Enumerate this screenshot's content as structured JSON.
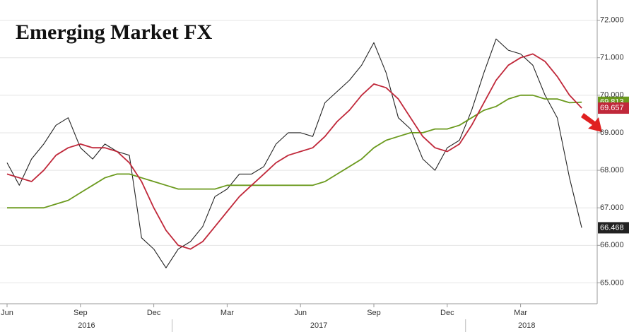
{
  "chart_data": {
    "type": "line",
    "title": "Emerging Market FX",
    "categories": [
      "Jun",
      null,
      null,
      null,
      null,
      null,
      "Sep",
      null,
      null,
      null,
      null,
      null,
      "Dec",
      null,
      null,
      null,
      null,
      null,
      "Mar",
      null,
      null,
      null,
      null,
      null,
      "Jun",
      null,
      null,
      null,
      null,
      null,
      "Sep",
      null,
      null,
      null,
      null,
      null,
      "Dec",
      null,
      null,
      null,
      null,
      null,
      "Mar",
      null,
      null,
      null,
      null,
      null
    ],
    "year_groups": [
      {
        "label": "2016",
        "from": 0,
        "to": 13
      },
      {
        "label": "2017",
        "from": 14,
        "to": 37
      },
      {
        "label": "2018",
        "from": 38,
        "to": 47
      }
    ],
    "series": [
      {
        "color": "#222222",
        "values": [
          68.2,
          67.6,
          68.3,
          68.7,
          69.2,
          69.4,
          68.6,
          68.3,
          68.7,
          68.5,
          68.4,
          66.2,
          65.9,
          65.4,
          65.9,
          66.1,
          66.5,
          67.3,
          67.5,
          67.9,
          67.9,
          68.1,
          68.7,
          69.0,
          69.0,
          68.9,
          69.8,
          70.1,
          70.4,
          70.8,
          71.4,
          70.6,
          69.4,
          69.1,
          68.3,
          68.0,
          68.6,
          68.8,
          69.6,
          70.6,
          71.5,
          71.2,
          71.1,
          70.8,
          70.0,
          69.4,
          67.8,
          66.468
        ]
      },
      {
        "color": "#6b9a1e",
        "values": [
          67.0,
          67.0,
          67.0,
          67.0,
          67.1,
          67.2,
          67.4,
          67.6,
          67.8,
          67.9,
          67.9,
          67.8,
          67.7,
          67.6,
          67.5,
          67.5,
          67.5,
          67.5,
          67.6,
          67.6,
          67.6,
          67.6,
          67.6,
          67.6,
          67.6,
          67.6,
          67.7,
          67.9,
          68.1,
          68.3,
          68.6,
          68.8,
          68.9,
          69.0,
          69.0,
          69.1,
          69.1,
          69.2,
          69.4,
          69.6,
          69.7,
          69.9,
          70.0,
          70.0,
          69.9,
          69.9,
          69.8,
          69.813
        ]
      },
      {
        "color": "#c0283a",
        "values": [
          67.9,
          67.8,
          67.7,
          68.0,
          68.4,
          68.6,
          68.7,
          68.6,
          68.6,
          68.5,
          68.2,
          67.7,
          67.0,
          66.4,
          66.0,
          65.9,
          66.1,
          66.5,
          66.9,
          67.3,
          67.6,
          67.9,
          68.2,
          68.4,
          68.5,
          68.6,
          68.9,
          69.3,
          69.6,
          70.0,
          70.3,
          70.2,
          69.9,
          69.4,
          68.9,
          68.6,
          68.5,
          68.7,
          69.2,
          69.8,
          70.4,
          70.8,
          71.0,
          71.1,
          70.9,
          70.5,
          70.0,
          69.657
        ]
      }
    ],
    "ylim": [
      64.5,
      72.5
    ],
    "yticks": [
      {
        "value": 65,
        "label": "65.000"
      },
      {
        "value": 66,
        "label": "66.000"
      },
      {
        "value": 67,
        "label": "67.000"
      },
      {
        "value": 68,
        "label": "68.000"
      },
      {
        "value": 69,
        "label": "69.000"
      },
      {
        "value": 70,
        "label": "70.000"
      },
      {
        "value": 71,
        "label": "71.000"
      },
      {
        "value": 72,
        "label": "72.000"
      }
    ],
    "grid": true
  }
}
